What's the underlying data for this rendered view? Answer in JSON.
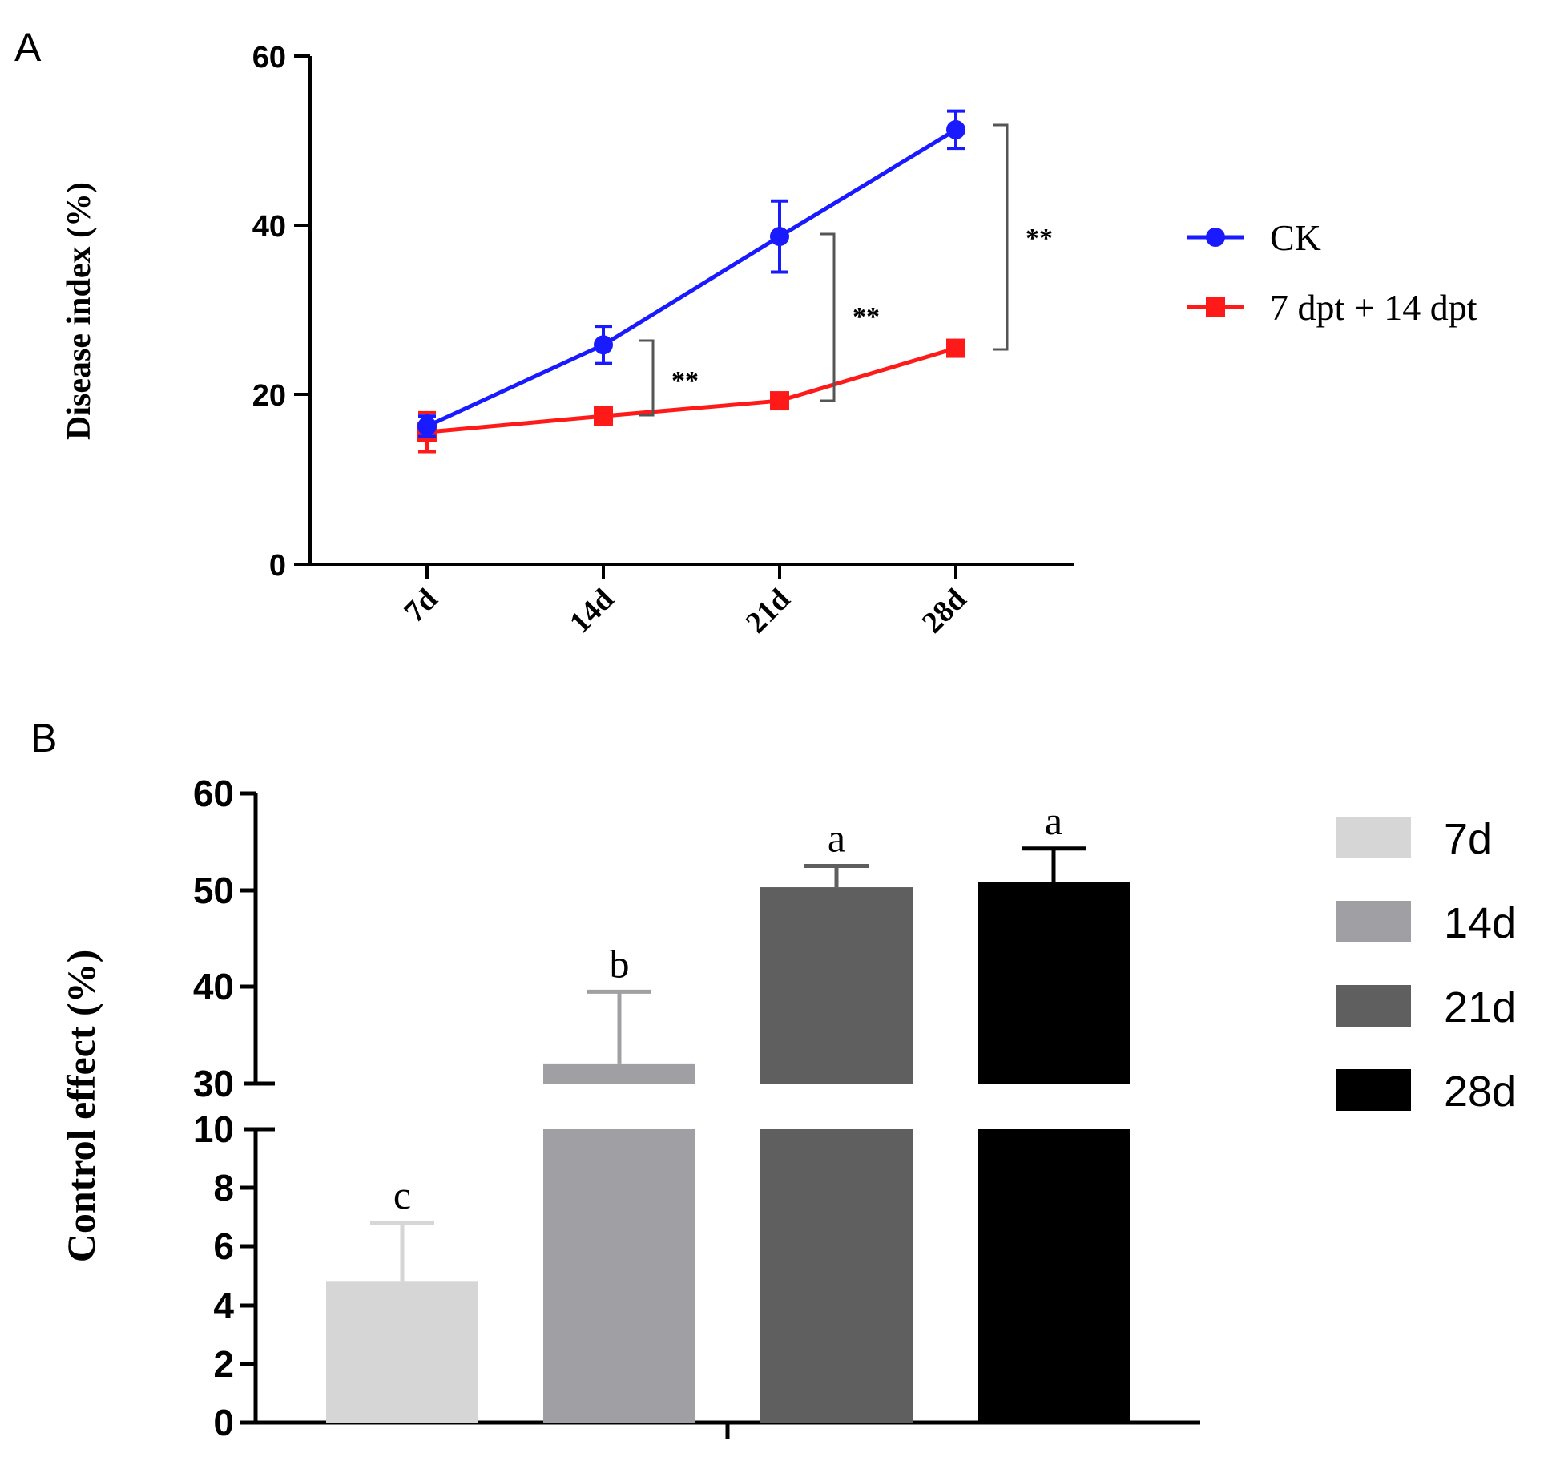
{
  "chart_data": [
    {
      "panel": "A",
      "type": "line",
      "xlabel": "",
      "ylabel": "Disease index (%)",
      "categories": [
        "7d",
        "14d",
        "21d",
        "28d"
      ],
      "ylim": [
        0,
        60
      ],
      "yticks": [
        "0",
        "20",
        "40",
        "60"
      ],
      "series": [
        {
          "name": "CK",
          "color": "#1a1aff",
          "marker": "circle",
          "values": [
            16.3,
            25.9,
            38.7,
            51.3
          ],
          "errors": [
            1.2,
            2.2,
            4.2,
            2.2
          ]
        },
        {
          "name": "7 dpt + 14 dpt",
          "color": "#ff1a1a",
          "marker": "square",
          "values": [
            15.6,
            17.5,
            19.3,
            25.5
          ],
          "errors": [
            2.3,
            1.0,
            0.6,
            0.8
          ]
        }
      ],
      "annotations": [
        {
          "category": "14d",
          "text": "**"
        },
        {
          "category": "21d",
          "text": "**"
        },
        {
          "category": "28d",
          "text": "**"
        }
      ]
    },
    {
      "panel": "B",
      "type": "bar",
      "xlabel": "",
      "ylabel": "Control effect (%)",
      "categories": [
        "7d",
        "14d",
        "21d",
        "28d"
      ],
      "values": [
        4.8,
        32.0,
        50.3,
        50.8
      ],
      "errors": [
        2.0,
        7.5,
        2.2,
        3.5
      ],
      "letters": [
        "c",
        "b",
        "a",
        "a"
      ],
      "colors": [
        "#d6d6d6",
        "#a0a0a4",
        "#5f5f5f",
        "#000000"
      ],
      "axis_break": {
        "lower": [
          0,
          10
        ],
        "upper": [
          30,
          60
        ]
      },
      "yticks_lower": [
        "0",
        "2",
        "4",
        "6",
        "8",
        "10"
      ],
      "yticks_upper": [
        "30",
        "40",
        "50",
        "60"
      ]
    }
  ]
}
